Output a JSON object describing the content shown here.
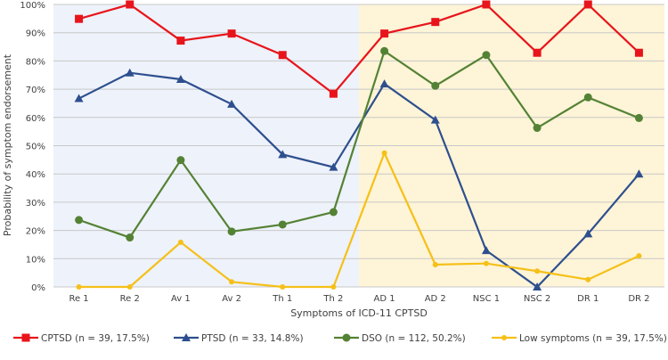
{
  "chart_data": {
    "type": "line",
    "title": "",
    "xlabel": "Symptoms of ICD-11 CPTSD",
    "ylabel": "Probability of symptom endorsement",
    "ylim": [
      0,
      100
    ],
    "yticks": [
      "0%",
      "10%",
      "20%",
      "30%",
      "40%",
      "50%",
      "60%",
      "70%",
      "80%",
      "90%",
      "100%"
    ],
    "categories": [
      "Re 1",
      "Re 2",
      "Av 1",
      "Av 2",
      "Th 1",
      "Th 2",
      "AD 1",
      "AD 2",
      "NSC 1",
      "NSC 2",
      "DR 1",
      "DR 2"
    ],
    "grid": true,
    "legend_position": "bottom",
    "background_bands": [
      {
        "from": "Re 1",
        "to": "Th 2",
        "color": "#eef2fa"
      },
      {
        "from": "AD 1",
        "to": "DR 2",
        "color": "#fef4d7"
      }
    ],
    "series": [
      {
        "name": "CPTSD (n = 39, 17.5%)",
        "color": "#e8141b",
        "marker": "square",
        "values": [
          94.9,
          100,
          87.2,
          89.7,
          82.1,
          68.4,
          89.7,
          93.8,
          100,
          82.9,
          100,
          82.9
        ]
      },
      {
        "name": "PTSD  (n = 33, 14.8%)",
        "color": "#2e4f8e",
        "marker": "triangle",
        "values": [
          66.7,
          75.8,
          73.5,
          64.7,
          46.9,
          42.4,
          71.9,
          59.1,
          12.9,
          0,
          18.8,
          40.0
        ]
      },
      {
        "name": "DSO (n = 112, 50.2%)",
        "color": "#548235",
        "marker": "circle",
        "values": [
          23.7,
          17.5,
          44.9,
          19.6,
          22.1,
          26.5,
          83.5,
          71.2,
          82.1,
          56.3,
          67.1,
          59.8
        ]
      },
      {
        "name": "Low symptoms (n = 39, 17.5%)",
        "color": "#f5c018",
        "marker": "small-circle",
        "values": [
          0,
          0,
          15.8,
          1.8,
          0,
          0,
          47.4,
          7.9,
          8.3,
          5.6,
          2.6,
          11.0
        ]
      }
    ]
  }
}
